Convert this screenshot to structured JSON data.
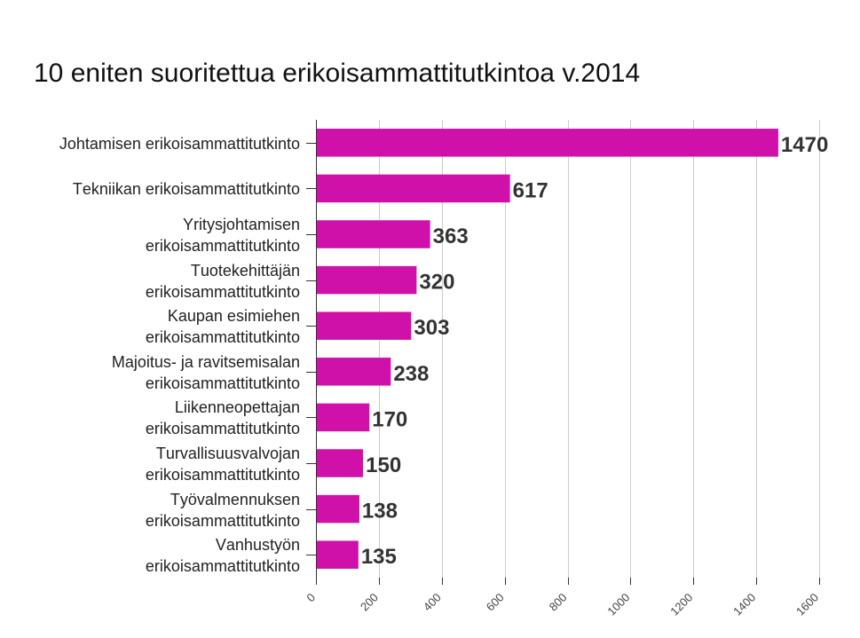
{
  "chart_data": {
    "type": "bar",
    "orientation": "horizontal",
    "title": "10 eniten suoritettua erikoisammattitutkintoa v.2014",
    "categories": [
      "Johtamisen erikoisammattitutkinto",
      "Tekniikan erikoisammattitutkinto",
      "Yritysjohtamisen erikoisammattitutkinto",
      "Tuotekehittäjän erikoisammattitutkinto",
      "Kaupan esimiehen erikoisammattitutkinto",
      "Majoitus- ja ravitsemisalan erikoisammattitutkinto",
      "Liikenneopettajan erikoisammattitutkinto",
      "Turvallisuusvalvojan erikoisammattitutkinto",
      "Työvalmennuksen erikoisammattitutkinto",
      "Vanhustyön erikoisammattitutkinto"
    ],
    "values": [
      1470,
      617,
      363,
      320,
      303,
      238,
      170,
      150,
      138,
      135
    ],
    "xlim": [
      0,
      1600
    ],
    "x_ticks": [
      0,
      200,
      400,
      600,
      800,
      1000,
      1200,
      1400,
      1600
    ],
    "data_labels": true,
    "grid": "vertical",
    "legend": "none",
    "colors": {
      "bar": "#D011A9",
      "grid": "#CCCCCC",
      "axis": "#333333",
      "title": "#111111",
      "category_label": "#222222",
      "data_label": "#333333",
      "tick_label": "#444444"
    }
  }
}
